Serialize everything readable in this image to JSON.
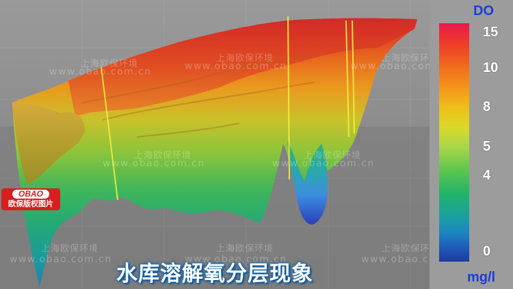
{
  "legend": {
    "unit_top": "DO",
    "unit_bottom": "mg/l",
    "ticks": [
      "15",
      "10",
      "8",
      "5",
      "4",
      "0"
    ],
    "color_top": "#e8184c",
    "color_bottom": "#1d3aa0"
  },
  "caption": "水库溶解氧分层现象",
  "watermark": {
    "cn": "上海欧保环境",
    "url": "www.obao.com.cn"
  },
  "badge": {
    "logo": "OBAO",
    "text": "欧保版权图片",
    "color": "#d81e1e"
  },
  "colors": {
    "background_grey": "#8a8a8a",
    "panel_grey": "#9c9c9c",
    "unit_blue": "#1a3fd6",
    "caption_glow": "#0b5ea8"
  }
}
